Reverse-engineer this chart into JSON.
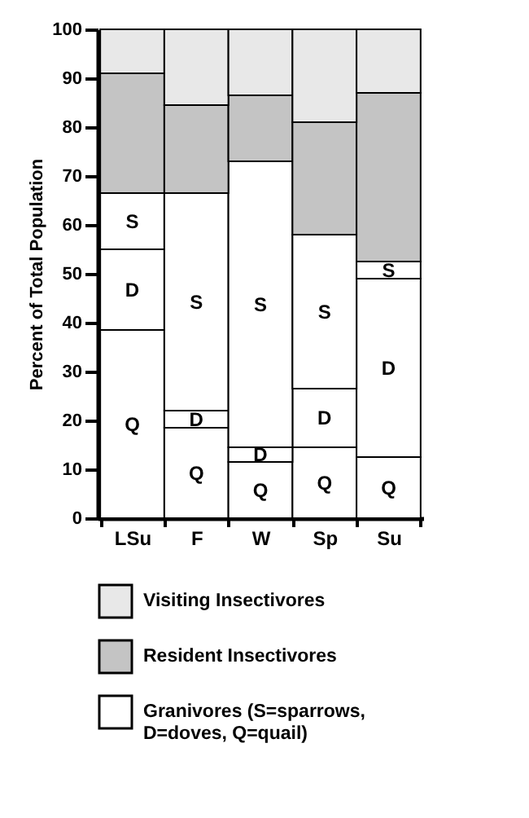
{
  "chart_data": {
    "type": "bar",
    "stacked": true,
    "ylabel": "Percent of Total Population",
    "categories": [
      "LSu",
      "F",
      "W",
      "Sp",
      "Su"
    ],
    "ylim": [
      0,
      100
    ],
    "yticks": [
      0,
      10,
      20,
      30,
      40,
      50,
      60,
      70,
      80,
      90,
      100
    ],
    "grid": false,
    "legend": "bottom",
    "series": [
      {
        "color": "#ffffff",
        "values": [
          38.5,
          18.5,
          11.5,
          14.5,
          12.5
        ],
        "value_labels": [
          "Q",
          "Q",
          "Q",
          "Q",
          "Q"
        ]
      },
      {
        "color": "#ffffff",
        "values": [
          16.5,
          3.5,
          3,
          12,
          36.5
        ],
        "value_labels": [
          "D",
          "D",
          "D",
          "D",
          "D"
        ]
      },
      {
        "name": "Granivores (S=sparrows, D=doves, Q=quail)",
        "color": "#ffffff",
        "values": [
          11.5,
          44.5,
          58.5,
          31.5,
          3.5
        ],
        "value_labels": [
          "S",
          "S",
          "S",
          "S",
          "S"
        ]
      },
      {
        "name": "Resident Insectivores",
        "color": "#c4c4c4",
        "values": [
          24.5,
          18,
          13.5,
          23,
          34.5
        ]
      },
      {
        "name": "Visiting Insectivores",
        "color": "#e8e8e8",
        "values": [
          9,
          15.5,
          13.5,
          19,
          13
        ]
      }
    ]
  }
}
